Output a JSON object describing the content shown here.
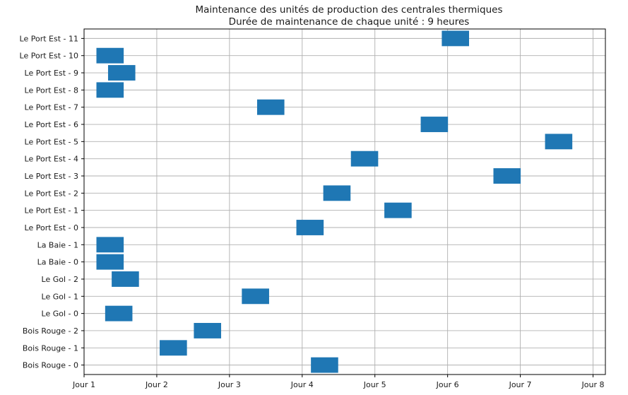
{
  "chart_data": {
    "type": "gantt",
    "title": "Maintenance des unités de production des centrales thermiques",
    "subtitle": "Durée de maintenance de chaque unité : 9 heures",
    "xlabel": "",
    "ylabel": "",
    "x_unit": "jour",
    "xlim": [
      1,
      8.17
    ],
    "x_ticks": [
      {
        "value": 1,
        "label": "Jour 1"
      },
      {
        "value": 2,
        "label": "Jour 2"
      },
      {
        "value": 3,
        "label": "Jour 3"
      },
      {
        "value": 4,
        "label": "Jour 4"
      },
      {
        "value": 5,
        "label": "Jour 5"
      },
      {
        "value": 6,
        "label": "Jour 6"
      },
      {
        "value": 7,
        "label": "Jour 7"
      },
      {
        "value": 8,
        "label": "Jour 8"
      }
    ],
    "categories": [
      "Bois Rouge - 0",
      "Bois Rouge - 1",
      "Bois Rouge - 2",
      "Le Gol - 0",
      "Le Gol - 1",
      "Le Gol - 2",
      "La Baie - 0",
      "La Baie - 1",
      "Le Port Est - 0",
      "Le Port Est - 1",
      "Le Port Est - 2",
      "Le Port Est - 3",
      "Le Port Est - 4",
      "Le Port Est - 5",
      "Le Port Est - 6",
      "Le Port Est - 7",
      "Le Port Est - 8",
      "Le Port Est - 9",
      "Le Port Est - 10",
      "Le Port Est - 11"
    ],
    "duration_days": 0.375,
    "starts": [
      4.12,
      2.04,
      2.51,
      1.29,
      3.17,
      1.38,
      1.17,
      1.17,
      3.92,
      5.13,
      4.29,
      6.63,
      4.67,
      7.34,
      5.63,
      3.38,
      1.17,
      1.33,
      1.17,
      5.92
    ],
    "grid": true,
    "bar_color": "#1f77b4"
  }
}
